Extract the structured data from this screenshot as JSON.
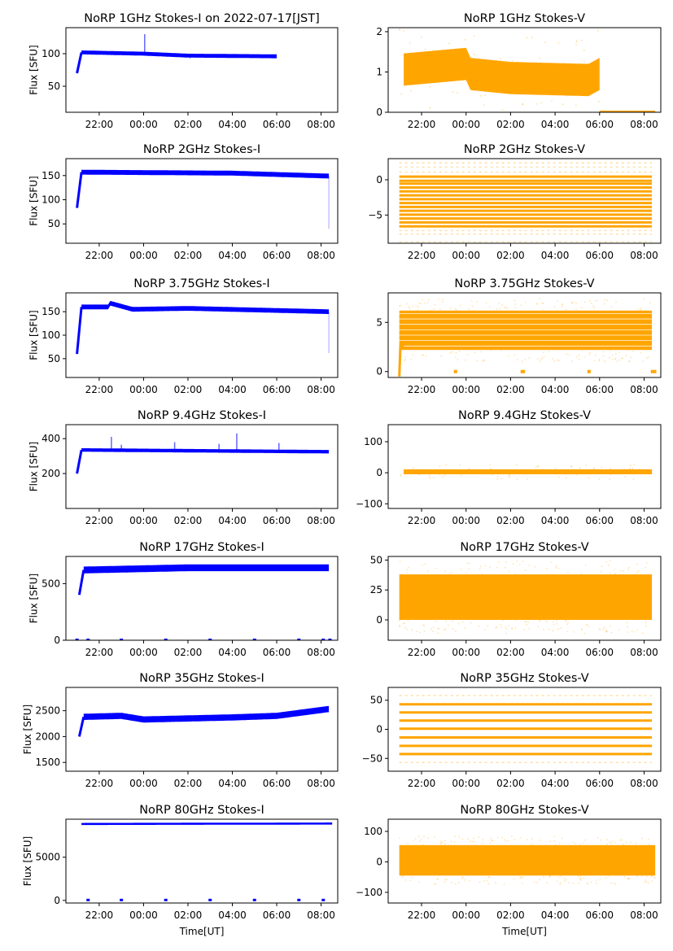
{
  "figure": {
    "x_axis_label": "Time[UT]",
    "y_axis_label": "Flux [SFU]",
    "x_tick_labels": [
      "22:00",
      "00:00",
      "02:00",
      "04:00",
      "06:00",
      "08:00"
    ]
  },
  "colors": {
    "stokes_i": "#0000ff",
    "stokes_v": "#ffa500"
  },
  "chart_data": [
    {
      "type": "scatter",
      "title": "NoRP 1GHz Stokes-I on 2022-07-17[JST]",
      "ylabel": "Flux [SFU]",
      "xlabel": "",
      "xlim_hours": [
        20.5,
        32.75
      ],
      "ylim": [
        10,
        140
      ],
      "yticks": [
        50,
        100
      ],
      "ytick_labels": [
        "50",
        "100"
      ],
      "start": 21.0,
      "end": 30.0,
      "start_value": 70,
      "level": [
        [
          21.2,
          102
        ],
        [
          24.0,
          100
        ],
        [
          26.0,
          97
        ],
        [
          30.0,
          96
        ]
      ],
      "spread": 3,
      "spikes": [
        {
          "t": 24.05,
          "v": 130
        },
        {
          "t": 26.1,
          "v": 93
        }
      ],
      "zero_marks": []
    },
    {
      "type": "scatter",
      "title": "NoRP 1GHz Stokes-V",
      "ylabel": "",
      "xlabel": "",
      "xlim_hours": [
        20.5,
        32.75
      ],
      "ylim": [
        0,
        2.1
      ],
      "yticks": [
        0,
        1,
        2
      ],
      "ytick_labels": [
        "0",
        "1",
        "2"
      ],
      "start": 21.0,
      "end": 30.0,
      "level": [
        [
          21.0,
          1.05
        ],
        [
          24.0,
          1.2
        ],
        [
          24.2,
          0.95
        ],
        [
          26.0,
          0.85
        ],
        [
          29.5,
          0.8
        ],
        [
          30.0,
          0.95
        ]
      ],
      "spread": 0.4,
      "zero_line": [
        30.0,
        32.5
      ]
    },
    {
      "type": "scatter",
      "title": "NoRP 2GHz Stokes-I",
      "ylabel": "Flux [SFU]",
      "xlabel": "",
      "xlim_hours": [
        20.5,
        32.75
      ],
      "ylim": [
        10,
        185
      ],
      "yticks": [
        50,
        100,
        150
      ],
      "ytick_labels": [
        "50",
        "100",
        "150"
      ],
      "start": 21.0,
      "end": 32.35,
      "start_value": 83,
      "level": [
        [
          21.2,
          157
        ],
        [
          28.0,
          155
        ],
        [
          32.3,
          149
        ]
      ],
      "spread": 5,
      "end_drop": 40
    },
    {
      "type": "scatter",
      "title": "NoRP 2GHz Stokes-V",
      "ylabel": "",
      "xlabel": "",
      "xlim_hours": [
        20.5,
        32.75
      ],
      "ylim": [
        -9,
        3
      ],
      "yticks": [
        -5,
        0
      ],
      "ytick_labels": [
        "−5",
        "0"
      ],
      "start": 21.0,
      "end": 32.35,
      "quantized_levels": [
        -6.6,
        -6.05,
        -5.5,
        -4.95,
        -4.4,
        -3.85,
        -3.3,
        -2.75,
        -2.2,
        -1.65,
        -1.1,
        -0.55,
        -0.15,
        0.45
      ],
      "sparse_levels": [
        -8.8,
        -7.7,
        -7.2,
        1.1,
        1.8,
        2.4
      ]
    },
    {
      "type": "scatter",
      "title": "NoRP 3.75GHz Stokes-I",
      "ylabel": "Flux [SFU]",
      "xlabel": "",
      "xlim_hours": [
        20.5,
        32.75
      ],
      "ylim": [
        10,
        190
      ],
      "yticks": [
        50,
        100,
        150
      ],
      "ytick_labels": [
        "50",
        "100",
        "150"
      ],
      "start": 21.0,
      "end": 32.35,
      "start_value": 60,
      "level": [
        [
          21.2,
          160
        ],
        [
          22.4,
          160
        ],
        [
          22.5,
          168
        ],
        [
          23.5,
          155
        ],
        [
          26.0,
          157
        ],
        [
          32.3,
          150
        ]
      ],
      "spread": 5,
      "end_drop": 62
    },
    {
      "type": "scatter",
      "title": "NoRP 3.75GHz Stokes-V",
      "ylabel": "",
      "xlabel": "",
      "xlim_hours": [
        20.5,
        32.75
      ],
      "ylim": [
        -0.6,
        8.0
      ],
      "yticks": [
        0,
        5
      ],
      "ytick_labels": [
        "0",
        "5"
      ],
      "start": 21.0,
      "end": 32.35,
      "band": [
        2.2,
        6.2
      ],
      "zero_segments": [
        [
          23.45,
          23.6
        ],
        [
          26.45,
          26.65
        ],
        [
          29.45,
          29.6
        ],
        [
          32.3,
          32.55
        ]
      ]
    },
    {
      "type": "scatter",
      "title": "NoRP 9.4GHz Stokes-I",
      "ylabel": "Flux [SFU]",
      "xlabel": "",
      "xlim_hours": [
        20.5,
        32.75
      ],
      "ylim": [
        0,
        480
      ],
      "yticks": [
        200,
        400
      ],
      "ytick_labels": [
        "200",
        "400"
      ],
      "start": 21.0,
      "end": 32.35,
      "start_value": 200,
      "level": [
        [
          21.2,
          335
        ],
        [
          32.3,
          325
        ]
      ],
      "spread": 10,
      "spikes": [
        {
          "t": 22.55,
          "v": 410
        },
        {
          "t": 23.0,
          "v": 365
        },
        {
          "t": 25.4,
          "v": 380
        },
        {
          "t": 27.4,
          "v": 370
        },
        {
          "t": 28.2,
          "v": 430
        },
        {
          "t": 30.1,
          "v": 375
        }
      ]
    },
    {
      "type": "scatter",
      "title": "NoRP 9.4GHz Stokes-V",
      "ylabel": "",
      "xlabel": "",
      "xlim_hours": [
        20.5,
        32.75
      ],
      "ylim": [
        -115,
        155
      ],
      "yticks": [
        -100,
        0,
        100
      ],
      "ytick_labels": [
        "−100",
        "0",
        "100"
      ],
      "start": 21.0,
      "end": 32.35,
      "level": [
        [
          21.0,
          3
        ],
        [
          32.3,
          3
        ]
      ],
      "spread": 8
    },
    {
      "type": "scatter",
      "title": "NoRP 17GHz Stokes-I",
      "ylabel": "Flux [SFU]",
      "xlabel": "",
      "xlim_hours": [
        20.5,
        32.75
      ],
      "ylim": [
        0,
        740
      ],
      "yticks": [
        0,
        500
      ],
      "ytick_labels": [
        "0",
        "500"
      ],
      "start": 21.1,
      "end": 32.35,
      "start_value": 400,
      "level": [
        [
          21.2,
          620
        ],
        [
          26.0,
          640
        ],
        [
          32.3,
          640
        ]
      ],
      "spread": 30,
      "zero_marks": [
        21.0,
        21.5,
        23.0,
        25.0,
        27.0,
        29.0,
        31.0,
        32.1,
        32.4
      ]
    },
    {
      "type": "scatter",
      "title": "NoRP 17GHz Stokes-V",
      "ylabel": "",
      "xlabel": "",
      "xlim_hours": [
        20.5,
        32.75
      ],
      "ylim": [
        -17,
        53
      ],
      "yticks": [
        0,
        25,
        50
      ],
      "ytick_labels": [
        "0",
        "25",
        "50"
      ],
      "start": 21.0,
      "end": 32.35,
      "band": [
        0,
        38
      ]
    },
    {
      "type": "scatter",
      "title": "NoRP 35GHz Stokes-I",
      "ylabel": "Flux [SFU]",
      "xlabel": "",
      "xlim_hours": [
        20.5,
        32.75
      ],
      "ylim": [
        1330,
        2950
      ],
      "yticks": [
        1500,
        2000,
        2500
      ],
      "ytick_labels": [
        "1500",
        "2000",
        "2500"
      ],
      "start": 21.1,
      "end": 32.35,
      "start_value": 2000,
      "level": [
        [
          21.2,
          2380
        ],
        [
          23.0,
          2400
        ],
        [
          24.0,
          2330
        ],
        [
          28.0,
          2370
        ],
        [
          30.0,
          2400
        ],
        [
          32.3,
          2530
        ]
      ],
      "spread": 60
    },
    {
      "type": "scatter",
      "title": "NoRP 35GHz Stokes-V",
      "ylabel": "",
      "xlabel": "",
      "xlim_hours": [
        20.5,
        32.75
      ],
      "ylim": [
        -72,
        72
      ],
      "yticks": [
        -50,
        0,
        50
      ],
      "ytick_labels": [
        "−50",
        "0",
        "50"
      ],
      "start": 21.0,
      "end": 32.35,
      "quantized_levels": [
        -42.5,
        -28.5,
        -14,
        1,
        15,
        29,
        43
      ],
      "sparse_levels": [
        -57,
        58
      ]
    },
    {
      "type": "scatter",
      "title": "NoRP 80GHz Stokes-I",
      "ylabel": "Flux [SFU]",
      "xlabel": "Time[UT]",
      "xlim_hours": [
        20.5,
        32.75
      ],
      "ylim": [
        -300,
        9400
      ],
      "yticks": [
        0,
        5000
      ],
      "ytick_labels": [
        "0",
        "5000"
      ],
      "start": 21.0,
      "end": 32.5,
      "level": [
        [
          21.0,
          8850
        ],
        [
          32.5,
          8900
        ]
      ],
      "spread": 120,
      "zero_marks": [
        21.5,
        23.0,
        25.0,
        27.0,
        29.0,
        31.0,
        32.1
      ]
    },
    {
      "type": "scatter",
      "title": "NoRP 80GHz Stokes-V",
      "ylabel": "",
      "xlabel": "Time[UT]",
      "xlim_hours": [
        20.5,
        32.75
      ],
      "ylim": [
        -135,
        140
      ],
      "yticks": [
        -100,
        0,
        100
      ],
      "ytick_labels": [
        "−100",
        "0",
        "100"
      ],
      "start": 21.0,
      "end": 32.5,
      "band": [
        -45,
        55
      ]
    }
  ]
}
